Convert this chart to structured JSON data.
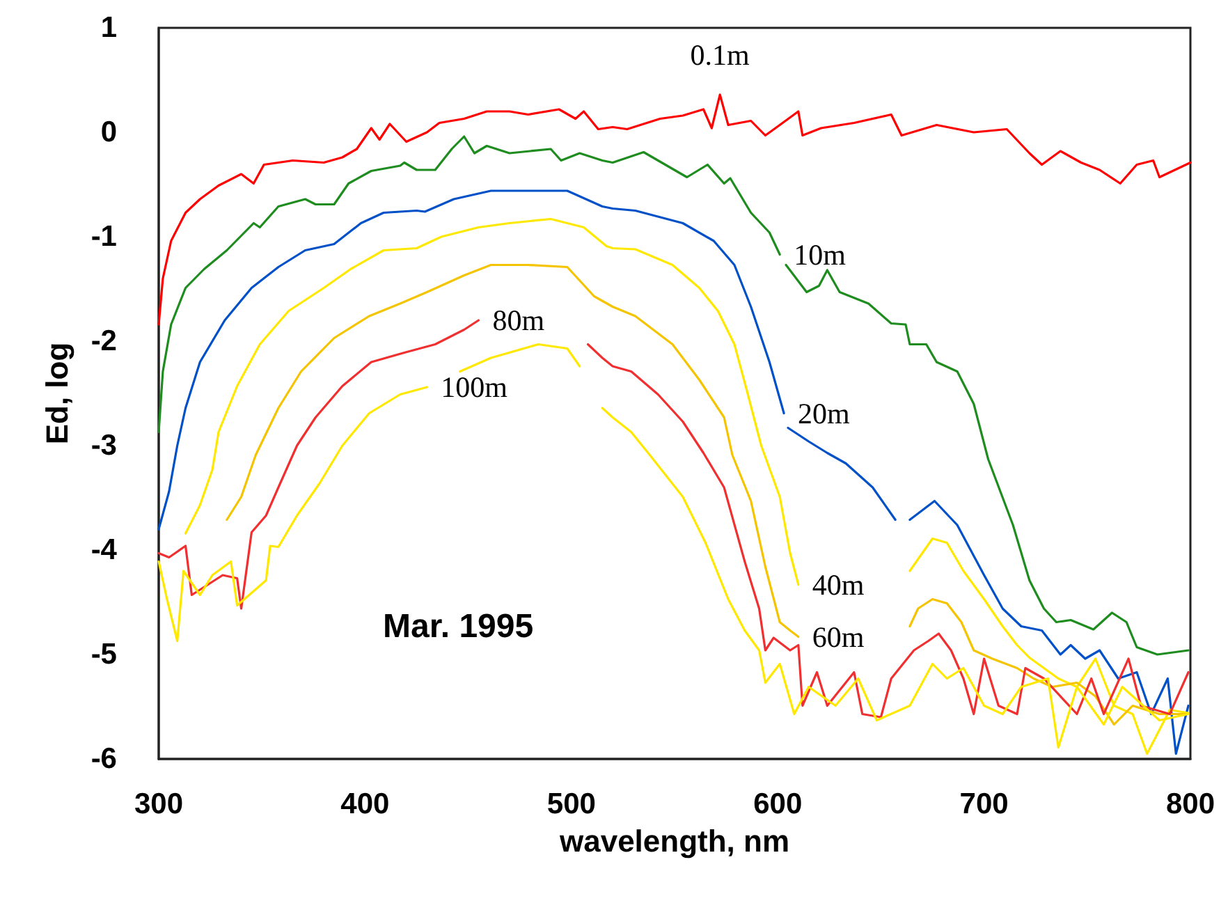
{
  "chart_data": {
    "type": "line",
    "xlabel": "wavelength, nm",
    "ylabel": "Ed, log",
    "xlim": [
      300,
      800
    ],
    "xticks": [
      300,
      400,
      500,
      600,
      700,
      800
    ],
    "ylim": [
      -6,
      1
    ],
    "yticks": [
      -6,
      -5,
      -4,
      -3,
      -2,
      -1,
      0,
      1
    ],
    "grid": false,
    "legend": false,
    "annotations": [
      "Mar. 1995"
    ],
    "series": [
      {
        "name": "0.1m",
        "color": "#ff0000",
        "x": [
          300,
          302,
          306,
          313,
          320,
          329,
          340,
          346,
          351,
          365,
          380,
          389,
          396,
          403,
          407,
          412,
          420,
          430,
          436,
          448,
          459,
          470,
          479,
          494,
          502,
          506,
          513,
          520,
          527,
          543,
          554,
          564,
          568,
          572,
          576,
          587,
          594,
          601,
          610,
          612,
          621,
          637,
          655,
          660,
          677,
          695,
          711,
          722,
          728,
          737,
          747,
          756,
          766,
          774,
          782,
          785,
          800
        ],
        "values": [
          -1.84,
          -1.4,
          -1.04,
          -0.77,
          -0.64,
          -0.51,
          -0.4,
          -0.49,
          -0.31,
          -0.27,
          -0.29,
          -0.24,
          -0.16,
          0.04,
          -0.07,
          0.08,
          -0.09,
          0.0,
          0.09,
          0.13,
          0.2,
          0.2,
          0.17,
          0.22,
          0.13,
          0.2,
          0.03,
          0.05,
          0.03,
          0.13,
          0.16,
          0.22,
          0.04,
          0.36,
          0.07,
          0.11,
          -0.03,
          0.07,
          0.2,
          -0.03,
          0.04,
          0.09,
          0.17,
          -0.03,
          0.07,
          0.0,
          0.03,
          -0.2,
          -0.31,
          -0.18,
          -0.29,
          -0.36,
          -0.49,
          -0.31,
          -0.27,
          -0.43,
          -0.29
        ]
      },
      {
        "name": "10m",
        "color": "#1e8c1e",
        "x": [
          300,
          302,
          306,
          313,
          322,
          333,
          346,
          349,
          358,
          371,
          376,
          385,
          392,
          403,
          417,
          419,
          425,
          434,
          442,
          448,
          453,
          459,
          470,
          490,
          495,
          504,
          515,
          520,
          535,
          542,
          556,
          566,
          574,
          577,
          587,
          596,
          601,
          602,
          604,
          614,
          620,
          624,
          630,
          644,
          655,
          662,
          664,
          672,
          677,
          687,
          695,
          702,
          714,
          722,
          729,
          735,
          742,
          753,
          762,
          769,
          774,
          784,
          799
        ],
        "values": [
          -2.87,
          -2.29,
          -1.84,
          -1.49,
          -1.31,
          -1.13,
          -0.87,
          -0.91,
          -0.71,
          -0.64,
          -0.69,
          -0.69,
          -0.49,
          -0.37,
          -0.32,
          -0.29,
          -0.36,
          -0.36,
          -0.16,
          -0.04,
          -0.2,
          -0.13,
          -0.2,
          -0.16,
          -0.27,
          -0.2,
          -0.27,
          -0.29,
          -0.19,
          -0.27,
          -0.43,
          -0.31,
          -0.49,
          -0.44,
          -0.77,
          -0.96,
          -1.17,
          null,
          -1.27,
          -1.53,
          -1.47,
          -1.32,
          -1.53,
          -1.64,
          -1.83,
          -1.84,
          -2.03,
          -2.03,
          -2.2,
          -2.29,
          -2.6,
          -3.13,
          -3.76,
          -4.29,
          -4.56,
          -4.69,
          -4.67,
          -4.76,
          -4.6,
          -4.69,
          -4.93,
          -5.0,
          -4.96
        ]
      },
      {
        "name": "20m",
        "color": "#0050c8",
        "x": [
          300,
          305,
          309,
          313,
          320,
          332,
          345,
          358,
          371,
          385,
          398,
          409,
          425,
          429,
          443,
          461,
          475,
          498,
          515,
          520,
          531,
          554,
          569,
          579,
          587,
          596,
          603,
          604,
          605,
          615,
          624,
          633,
          646,
          657,
          660,
          664,
          676,
          687,
          700,
          709,
          718,
          728,
          737,
          742,
          749,
          756,
          765,
          774,
          781,
          789,
          793,
          799
        ],
        "values": [
          -3.8,
          -3.44,
          -3.0,
          -2.64,
          -2.2,
          -1.8,
          -1.49,
          -1.29,
          -1.13,
          -1.07,
          -0.87,
          -0.77,
          -0.75,
          -0.76,
          -0.64,
          -0.56,
          -0.56,
          -0.56,
          -0.71,
          -0.73,
          -0.75,
          -0.87,
          -1.04,
          -1.27,
          -1.67,
          -2.2,
          -2.69,
          null,
          -2.83,
          -2.96,
          -3.07,
          -3.17,
          -3.4,
          -3.71,
          null,
          -3.71,
          -3.53,
          -3.76,
          -4.24,
          -4.56,
          -4.73,
          -4.77,
          -5.0,
          -4.91,
          -5.04,
          -4.96,
          -5.23,
          -5.17,
          -5.57,
          -5.23,
          -5.95,
          -5.49
        ]
      },
      {
        "name": "40m",
        "color": "#ffe800",
        "x": [
          313,
          320,
          326,
          329,
          338,
          349,
          363,
          380,
          393,
          409,
          425,
          437,
          455,
          470,
          490,
          506,
          517,
          520,
          531,
          549,
          562,
          571,
          579,
          585,
          592,
          601,
          606,
          610,
          640,
          664,
          675,
          682,
          690,
          700,
          709,
          716,
          722,
          736,
          745,
          754,
          763,
          772,
          779,
          790,
          799
        ],
        "values": [
          -3.84,
          -3.57,
          -3.23,
          -2.87,
          -2.43,
          -2.03,
          -1.71,
          -1.49,
          -1.31,
          -1.13,
          -1.11,
          -1.0,
          -0.91,
          -0.87,
          -0.83,
          -0.91,
          -1.09,
          -1.11,
          -1.12,
          -1.27,
          -1.49,
          -1.71,
          -2.03,
          -2.47,
          -3.0,
          -3.49,
          -4.03,
          -4.33,
          null,
          -4.2,
          -3.89,
          -3.93,
          -4.2,
          -4.47,
          -4.73,
          -4.91,
          -5.03,
          -5.23,
          -5.31,
          -5.04,
          -5.49,
          -5.57,
          -5.95,
          -5.53,
          -5.56
        ]
      },
      {
        "name": "60m",
        "color": "#f5c400",
        "x": [
          333,
          340,
          347,
          358,
          369,
          385,
          402,
          417,
          430,
          448,
          461,
          479,
          498,
          511,
          520,
          531,
          549,
          562,
          574,
          578,
          587,
          594,
          601,
          606,
          610,
          640,
          664,
          668,
          675,
          682,
          689,
          695,
          704,
          716,
          724,
          733,
          745,
          754,
          763,
          772,
          785,
          799
        ],
        "values": [
          -3.71,
          -3.49,
          -3.09,
          -2.64,
          -2.29,
          -1.97,
          -1.76,
          -1.64,
          -1.53,
          -1.37,
          -1.27,
          -1.27,
          -1.29,
          -1.57,
          -1.67,
          -1.76,
          -2.03,
          -2.37,
          -2.73,
          -3.09,
          -3.53,
          -4.16,
          -4.69,
          -4.77,
          -4.83,
          null,
          -4.73,
          -4.56,
          -4.47,
          -4.51,
          -4.69,
          -4.96,
          -5.04,
          -5.13,
          -5.23,
          -5.31,
          -5.27,
          -5.4,
          -5.67,
          -5.49,
          -5.57,
          -5.57
        ]
      },
      {
        "name": "80m",
        "color": "#f03030",
        "x": [
          300,
          305,
          313,
          316,
          331,
          338,
          340,
          345,
          352,
          358,
          367,
          376,
          389,
          403,
          419,
          434,
          448,
          455,
          480,
          508,
          515,
          520,
          529,
          542,
          554,
          564,
          574,
          584,
          591,
          594,
          598,
          606,
          610,
          612,
          619,
          624,
          637,
          641,
          650,
          655,
          666,
          673,
          678,
          684,
          690,
          695,
          700,
          707,
          716,
          720,
          729,
          745,
          752,
          758,
          770,
          776,
          790,
          799
        ],
        "values": [
          -4.03,
          -4.07,
          -3.96,
          -4.43,
          -4.24,
          -4.27,
          -4.56,
          -3.83,
          -3.67,
          -3.4,
          -3.0,
          -2.73,
          -2.43,
          -2.2,
          -2.11,
          -2.03,
          -1.89,
          -1.8,
          null,
          -2.03,
          -2.16,
          -2.24,
          -2.29,
          -2.51,
          -2.77,
          -3.07,
          -3.4,
          -4.11,
          -4.56,
          -4.96,
          -4.84,
          -4.96,
          -4.91,
          -5.49,
          -5.17,
          -5.49,
          -5.17,
          -5.57,
          -5.6,
          -5.23,
          -4.96,
          -4.87,
          -4.8,
          -4.96,
          -5.23,
          -5.57,
          -5.04,
          -5.49,
          -5.57,
          -5.13,
          -5.23,
          -5.57,
          -5.23,
          -5.57,
          -5.04,
          -5.49,
          -5.57,
          -5.17
        ]
      },
      {
        "name": "100m",
        "color": "#ffe800",
        "x": [
          300,
          304,
          309,
          312,
          320,
          326,
          335,
          338,
          352,
          354,
          358,
          367,
          378,
          389,
          402,
          417,
          430,
          438,
          446,
          461,
          484,
          498,
          504,
          510,
          515,
          520,
          529,
          538,
          554,
          565,
          576,
          584,
          591,
          594,
          601,
          608,
          615,
          628,
          639,
          648,
          664,
          675,
          682,
          690,
          700,
          709,
          718,
          731,
          736,
          745,
          758,
          767,
          785,
          799
        ],
        "values": [
          -4.11,
          -4.47,
          -4.87,
          -4.2,
          -4.43,
          -4.24,
          -4.11,
          -4.53,
          -4.29,
          -3.96,
          -3.97,
          -3.67,
          -3.36,
          -3.0,
          -2.69,
          -2.51,
          -2.44,
          null,
          -2.29,
          -2.16,
          -2.03,
          -2.07,
          -2.24,
          null,
          -2.64,
          -2.73,
          -2.87,
          -3.09,
          -3.49,
          -3.93,
          -4.47,
          -4.77,
          -4.96,
          -5.27,
          -5.09,
          -5.57,
          -5.31,
          -5.49,
          -5.23,
          -5.63,
          -5.49,
          -5.09,
          -5.23,
          -5.13,
          -5.49,
          -5.57,
          -5.31,
          -5.23,
          -5.89,
          -5.31,
          -5.67,
          -5.31,
          -5.63,
          -5.57
        ]
      }
    ]
  }
}
